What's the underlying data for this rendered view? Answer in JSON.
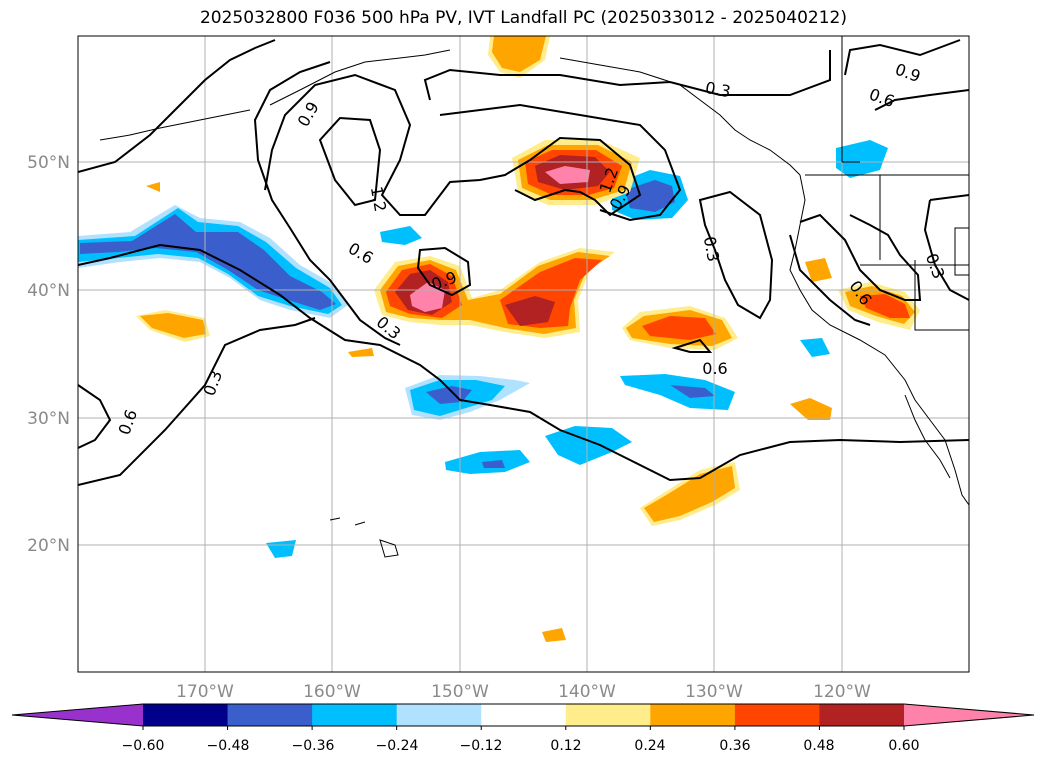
{
  "title": "2025032800 F036 500 hPa PV, IVT Landfall PC (2025033012 - 2025040212)",
  "lat_labels": [
    "50°N",
    "40°N",
    "30°N",
    "20°N"
  ],
  "lon_labels": [
    "170°W",
    "160°W",
    "150°W",
    "140°W",
    "130°W",
    "120°W"
  ],
  "colorbar": {
    "colors": [
      "#9932cc",
      "#00008b",
      "#3a5fcd",
      "#00bfff",
      "#b0e2ff",
      "#ffffff",
      "#ffec8b",
      "#ffa500",
      "#ff4500",
      "#b22222",
      "#ff82ab"
    ],
    "labels": [
      "−0.60",
      "−0.48",
      "−0.36",
      "−0.24",
      "−0.12",
      "0.12",
      "0.24",
      "0.36",
      "0.48",
      "0.60"
    ]
  },
  "contour_labels": [
    "0.9",
    "1.2",
    "0.6",
    "0.3",
    "0.9",
    "1.2",
    "0.9",
    "0.3",
    "0.3",
    "0.9",
    "0.6",
    "0.3",
    "0.6",
    "0.6",
    "0.3",
    "0.6"
  ]
}
